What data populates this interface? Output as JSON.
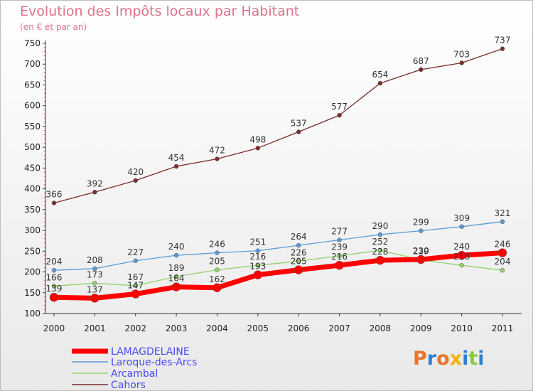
{
  "header": {
    "title": "Evolution des Impôts locaux par Habitant",
    "subtitle": "(en € et par an)"
  },
  "logo": {
    "text": "Proxiti"
  },
  "colors": {
    "LAMAGDELAINE": "#ff0000",
    "Laroque-des-Arcs": "#5b9bd5",
    "Arcambal": "#8fd36a",
    "Cahors": "#7a2c2c",
    "legend_text": "#4a4af0",
    "logo": [
      "#e8762d",
      "#2f7fd0",
      "#e8762d",
      "#f0b400",
      "#2f7fd0",
      "#8fc93a",
      "#2f7fd0"
    ]
  },
  "chart_data": {
    "type": "line",
    "title": "Evolution des Impôts locaux par Habitant",
    "subtitle": "(en € et par an)",
    "xlabel": "",
    "ylabel": "",
    "x": [
      "2000",
      "2001",
      "2002",
      "2003",
      "2004",
      "2005",
      "2006",
      "2007",
      "2008",
      "2009",
      "2010",
      "2011"
    ],
    "ylim": [
      100,
      750
    ],
    "yticks": [
      100,
      150,
      200,
      250,
      300,
      350,
      400,
      450,
      500,
      550,
      600,
      650,
      700,
      750
    ],
    "grid": false,
    "legend_position": "bottom-left",
    "series": [
      {
        "name": "LAMAGDELAINE",
        "values": [
          139,
          137,
          147,
          164,
          162,
          193,
          205,
          216,
          228,
          230,
          240,
          246
        ]
      },
      {
        "name": "Laroque-des-Arcs",
        "values": [
          204,
          208,
          227,
          240,
          246,
          251,
          264,
          277,
          290,
          299,
          309,
          321
        ]
      },
      {
        "name": "Arcambal",
        "values": [
          166,
          173,
          167,
          189,
          205,
          216,
          226,
          239,
          252,
          229,
          216,
          204
        ]
      },
      {
        "name": "Cahors",
        "values": [
          366,
          392,
          420,
          454,
          472,
          498,
          537,
          577,
          654,
          687,
          703,
          737
        ]
      }
    ]
  }
}
